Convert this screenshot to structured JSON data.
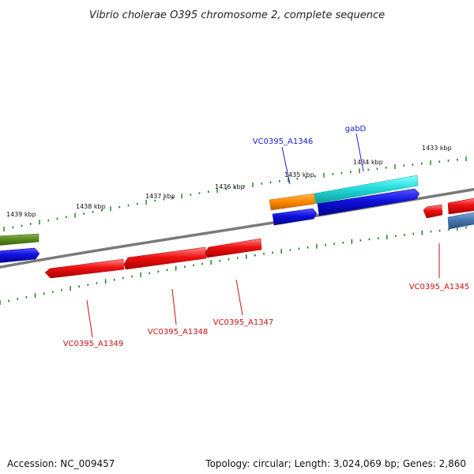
{
  "title": "Vibrio cholerae O395 chromosome 2, complete sequence",
  "scale_labels": [
    "1439 kbp",
    "1438 kbp",
    "1437 kbp",
    "1436 kbp",
    "1435 kbp",
    "1434 kbp",
    "1433 kbp"
  ],
  "gene_labels": [
    "VC0395_A1346",
    "gabD",
    "VC0395_A1345",
    "VC0395_A1349",
    "VC0395_A1348",
    "VC0395_A1347"
  ],
  "colors": {
    "backbone": "#7a7a7a",
    "tick": "#1a7a1a",
    "forward_label": "#1a1acc",
    "reverse_label": "#cc1111",
    "red": "#ee1111",
    "blue": "#1010dd",
    "cyan": "#22dddd",
    "orange": "#ff8c00",
    "olive": "#5a8a1e",
    "steelblue": "#4a78b0"
  },
  "footer": {
    "accession_label": "Accession:",
    "accession": "NC_009457",
    "topology_label": "Topology:",
    "topology": "circular",
    "length_label": "Length:",
    "length": "3,024,069 bp",
    "genes_label": "Genes:",
    "genes": "2,860"
  }
}
